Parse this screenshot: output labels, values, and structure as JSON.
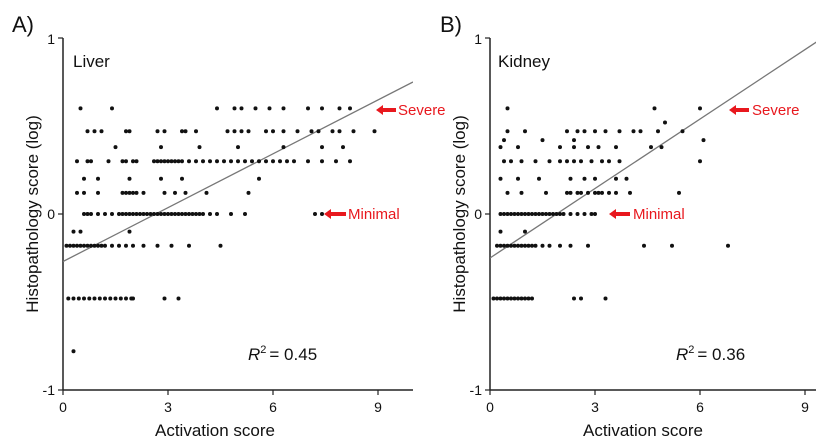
{
  "chart_data": [
    {
      "type": "scatter",
      "panel_label": "A)",
      "title": "Liver",
      "xlabel": "Activation score",
      "ylabel": "Histopathology score (log)",
      "xlim": [
        0,
        10
      ],
      "ylim": [
        -1,
        1
      ],
      "xticks": [
        "0",
        "3",
        "6",
        "9"
      ],
      "yticks": [
        "-1",
        "0",
        "1"
      ],
      "r2_label": "R",
      "r2_sup": "2",
      "r2_value": "= 0.45",
      "regression": {
        "x": [
          0,
          10
        ],
        "y": [
          -0.27,
          0.75
        ]
      },
      "annotations": [
        {
          "text": "Severe",
          "x": 9.6,
          "y": 0.6,
          "color": "#e8181e"
        },
        {
          "text": "Minimal",
          "x": 8.1,
          "y": 0.0,
          "color": "#e8181e"
        }
      ],
      "points": [
        [
          0.3,
          -0.78
        ],
        [
          0.15,
          -0.48
        ],
        [
          0.3,
          -0.48
        ],
        [
          0.45,
          -0.48
        ],
        [
          0.6,
          -0.48
        ],
        [
          0.75,
          -0.48
        ],
        [
          0.9,
          -0.48
        ],
        [
          1.05,
          -0.48
        ],
        [
          1.2,
          -0.48
        ],
        [
          1.35,
          -0.48
        ],
        [
          1.5,
          -0.48
        ],
        [
          1.65,
          -0.48
        ],
        [
          1.8,
          -0.48
        ],
        [
          1.95,
          -0.48
        ],
        [
          2.0,
          -0.48
        ],
        [
          2.9,
          -0.48
        ],
        [
          3.3,
          -0.48
        ],
        [
          0.1,
          -0.18
        ],
        [
          0.2,
          -0.18
        ],
        [
          0.3,
          -0.18
        ],
        [
          0.4,
          -0.18
        ],
        [
          0.5,
          -0.18
        ],
        [
          0.6,
          -0.18
        ],
        [
          0.7,
          -0.18
        ],
        [
          0.8,
          -0.18
        ],
        [
          0.9,
          -0.18
        ],
        [
          1.0,
          -0.18
        ],
        [
          1.1,
          -0.18
        ],
        [
          1.2,
          -0.18
        ],
        [
          1.4,
          -0.18
        ],
        [
          1.6,
          -0.18
        ],
        [
          1.8,
          -0.18
        ],
        [
          2.0,
          -0.18
        ],
        [
          2.3,
          -0.18
        ],
        [
          2.7,
          -0.18
        ],
        [
          3.1,
          -0.18
        ],
        [
          3.6,
          -0.18
        ],
        [
          4.5,
          -0.18
        ],
        [
          0.3,
          -0.1
        ],
        [
          0.5,
          -0.1
        ],
        [
          1.9,
          -0.1
        ],
        [
          0.6,
          0.0
        ],
        [
          0.7,
          0.0
        ],
        [
          0.8,
          0.0
        ],
        [
          1.0,
          0.0
        ],
        [
          1.2,
          0.0
        ],
        [
          1.4,
          0.0
        ],
        [
          1.6,
          0.0
        ],
        [
          1.7,
          0.0
        ],
        [
          1.8,
          0.0
        ],
        [
          1.9,
          0.0
        ],
        [
          2.0,
          0.0
        ],
        [
          2.1,
          0.0
        ],
        [
          2.2,
          0.0
        ],
        [
          2.3,
          0.0
        ],
        [
          2.4,
          0.0
        ],
        [
          2.5,
          0.0
        ],
        [
          2.6,
          0.0
        ],
        [
          2.7,
          0.0
        ],
        [
          2.8,
          0.0
        ],
        [
          2.9,
          0.0
        ],
        [
          3.0,
          0.0
        ],
        [
          3.1,
          0.0
        ],
        [
          3.2,
          0.0
        ],
        [
          3.3,
          0.0
        ],
        [
          3.4,
          0.0
        ],
        [
          3.5,
          0.0
        ],
        [
          3.6,
          0.0
        ],
        [
          3.7,
          0.0
        ],
        [
          3.8,
          0.0
        ],
        [
          3.9,
          0.0
        ],
        [
          4.0,
          0.0
        ],
        [
          4.2,
          0.0
        ],
        [
          4.4,
          0.0
        ],
        [
          4.8,
          0.0
        ],
        [
          5.2,
          0.0
        ],
        [
          7.2,
          0.0
        ],
        [
          7.4,
          0.0
        ],
        [
          0.4,
          0.12
        ],
        [
          0.6,
          0.12
        ],
        [
          1.0,
          0.12
        ],
        [
          1.7,
          0.12
        ],
        [
          1.8,
          0.12
        ],
        [
          1.9,
          0.12
        ],
        [
          2.0,
          0.12
        ],
        [
          2.1,
          0.12
        ],
        [
          2.3,
          0.12
        ],
        [
          2.9,
          0.12
        ],
        [
          3.2,
          0.12
        ],
        [
          3.5,
          0.12
        ],
        [
          4.1,
          0.12
        ],
        [
          5.3,
          0.12
        ],
        [
          0.6,
          0.2
        ],
        [
          1.0,
          0.2
        ],
        [
          1.9,
          0.2
        ],
        [
          2.8,
          0.2
        ],
        [
          3.4,
          0.2
        ],
        [
          5.6,
          0.2
        ],
        [
          0.4,
          0.3
        ],
        [
          0.7,
          0.3
        ],
        [
          0.8,
          0.3
        ],
        [
          1.3,
          0.3
        ],
        [
          1.7,
          0.3
        ],
        [
          1.8,
          0.3
        ],
        [
          2.0,
          0.3
        ],
        [
          2.1,
          0.3
        ],
        [
          2.6,
          0.3
        ],
        [
          2.7,
          0.3
        ],
        [
          2.8,
          0.3
        ],
        [
          2.9,
          0.3
        ],
        [
          3.0,
          0.3
        ],
        [
          3.1,
          0.3
        ],
        [
          3.2,
          0.3
        ],
        [
          3.3,
          0.3
        ],
        [
          3.4,
          0.3
        ],
        [
          3.6,
          0.3
        ],
        [
          3.8,
          0.3
        ],
        [
          4.0,
          0.3
        ],
        [
          4.2,
          0.3
        ],
        [
          4.4,
          0.3
        ],
        [
          4.6,
          0.3
        ],
        [
          4.8,
          0.3
        ],
        [
          5.0,
          0.3
        ],
        [
          5.2,
          0.3
        ],
        [
          5.4,
          0.3
        ],
        [
          5.6,
          0.3
        ],
        [
          5.8,
          0.3
        ],
        [
          6.0,
          0.3
        ],
        [
          6.2,
          0.3
        ],
        [
          6.4,
          0.3
        ],
        [
          6.6,
          0.3
        ],
        [
          7.0,
          0.3
        ],
        [
          7.4,
          0.3
        ],
        [
          7.8,
          0.3
        ],
        [
          8.2,
          0.3
        ],
        [
          1.5,
          0.38
        ],
        [
          2.8,
          0.38
        ],
        [
          3.9,
          0.38
        ],
        [
          5.0,
          0.38
        ],
        [
          6.3,
          0.38
        ],
        [
          7.4,
          0.38
        ],
        [
          8.0,
          0.38
        ],
        [
          0.7,
          0.47
        ],
        [
          0.9,
          0.47
        ],
        [
          1.1,
          0.47
        ],
        [
          1.8,
          0.47
        ],
        [
          1.9,
          0.47
        ],
        [
          2.7,
          0.47
        ],
        [
          2.9,
          0.47
        ],
        [
          3.4,
          0.47
        ],
        [
          3.5,
          0.47
        ],
        [
          3.8,
          0.47
        ],
        [
          4.7,
          0.47
        ],
        [
          4.9,
          0.47
        ],
        [
          5.1,
          0.47
        ],
        [
          5.3,
          0.47
        ],
        [
          5.8,
          0.47
        ],
        [
          6.0,
          0.47
        ],
        [
          6.3,
          0.47
        ],
        [
          6.7,
          0.47
        ],
        [
          7.1,
          0.47
        ],
        [
          7.3,
          0.47
        ],
        [
          7.7,
          0.47
        ],
        [
          7.9,
          0.47
        ],
        [
          8.3,
          0.47
        ],
        [
          8.9,
          0.47
        ],
        [
          0.5,
          0.6
        ],
        [
          1.4,
          0.6
        ],
        [
          4.4,
          0.6
        ],
        [
          4.9,
          0.6
        ],
        [
          5.1,
          0.6
        ],
        [
          5.5,
          0.6
        ],
        [
          5.9,
          0.6
        ],
        [
          6.3,
          0.6
        ],
        [
          7.0,
          0.6
        ],
        [
          7.4,
          0.6
        ],
        [
          7.9,
          0.6
        ],
        [
          8.2,
          0.6
        ]
      ]
    },
    {
      "type": "scatter",
      "panel_label": "B)",
      "title": "Kidney",
      "xlabel": "Activation score",
      "ylabel": "Histopathology score (log)",
      "xlim": [
        0,
        10
      ],
      "ylim": [
        -1,
        1
      ],
      "xticks": [
        "0",
        "3",
        "6",
        "9"
      ],
      "yticks": [
        "-1",
        "0",
        "1"
      ],
      "r2_label": "R",
      "r2_sup": "2",
      "r2_value": "= 0.36",
      "regression": {
        "x": [
          0,
          9.5
        ],
        "y": [
          -0.25,
          1.0
        ]
      },
      "annotations": [
        {
          "text": "Severe",
          "x": 7.4,
          "y": 0.6,
          "color": "#e8181e"
        },
        {
          "text": "Minimal",
          "x": 3.9,
          "y": 0.0,
          "color": "#e8181e"
        }
      ],
      "points": [
        [
          0.1,
          -0.48
        ],
        [
          0.2,
          -0.48
        ],
        [
          0.3,
          -0.48
        ],
        [
          0.4,
          -0.48
        ],
        [
          0.5,
          -0.48
        ],
        [
          0.6,
          -0.48
        ],
        [
          0.7,
          -0.48
        ],
        [
          0.8,
          -0.48
        ],
        [
          0.9,
          -0.48
        ],
        [
          1.0,
          -0.48
        ],
        [
          1.1,
          -0.48
        ],
        [
          1.2,
          -0.48
        ],
        [
          2.4,
          -0.48
        ],
        [
          2.6,
          -0.48
        ],
        [
          3.3,
          -0.48
        ],
        [
          0.2,
          -0.18
        ],
        [
          0.3,
          -0.18
        ],
        [
          0.4,
          -0.18
        ],
        [
          0.5,
          -0.18
        ],
        [
          0.6,
          -0.18
        ],
        [
          0.7,
          -0.18
        ],
        [
          0.8,
          -0.18
        ],
        [
          0.9,
          -0.18
        ],
        [
          1.0,
          -0.18
        ],
        [
          1.1,
          -0.18
        ],
        [
          1.2,
          -0.18
        ],
        [
          1.3,
          -0.18
        ],
        [
          1.5,
          -0.18
        ],
        [
          1.7,
          -0.18
        ],
        [
          2.0,
          -0.18
        ],
        [
          2.3,
          -0.18
        ],
        [
          2.8,
          -0.18
        ],
        [
          4.4,
          -0.18
        ],
        [
          5.2,
          -0.18
        ],
        [
          6.8,
          -0.18
        ],
        [
          0.3,
          -0.1
        ],
        [
          1.0,
          -0.1
        ],
        [
          0.3,
          0.0
        ],
        [
          0.4,
          0.0
        ],
        [
          0.5,
          0.0
        ],
        [
          0.6,
          0.0
        ],
        [
          0.7,
          0.0
        ],
        [
          0.8,
          0.0
        ],
        [
          0.9,
          0.0
        ],
        [
          1.0,
          0.0
        ],
        [
          1.1,
          0.0
        ],
        [
          1.2,
          0.0
        ],
        [
          1.3,
          0.0
        ],
        [
          1.4,
          0.0
        ],
        [
          1.5,
          0.0
        ],
        [
          1.6,
          0.0
        ],
        [
          1.7,
          0.0
        ],
        [
          1.8,
          0.0
        ],
        [
          1.9,
          0.0
        ],
        [
          2.0,
          0.0
        ],
        [
          2.1,
          0.0
        ],
        [
          2.3,
          0.0
        ],
        [
          2.5,
          0.0
        ],
        [
          2.7,
          0.0
        ],
        [
          2.9,
          0.0
        ],
        [
          3.0,
          0.0
        ],
        [
          0.5,
          0.12
        ],
        [
          0.9,
          0.12
        ],
        [
          1.6,
          0.12
        ],
        [
          2.2,
          0.12
        ],
        [
          2.3,
          0.12
        ],
        [
          2.5,
          0.12
        ],
        [
          2.6,
          0.12
        ],
        [
          2.8,
          0.12
        ],
        [
          3.0,
          0.12
        ],
        [
          3.1,
          0.12
        ],
        [
          3.2,
          0.12
        ],
        [
          3.4,
          0.12
        ],
        [
          3.6,
          0.12
        ],
        [
          4.0,
          0.12
        ],
        [
          5.4,
          0.12
        ],
        [
          0.3,
          0.2
        ],
        [
          0.8,
          0.2
        ],
        [
          1.4,
          0.2
        ],
        [
          2.3,
          0.2
        ],
        [
          2.7,
          0.2
        ],
        [
          3.0,
          0.2
        ],
        [
          3.6,
          0.2
        ],
        [
          3.9,
          0.2
        ],
        [
          0.4,
          0.3
        ],
        [
          0.6,
          0.3
        ],
        [
          0.9,
          0.3
        ],
        [
          1.3,
          0.3
        ],
        [
          1.7,
          0.3
        ],
        [
          2.0,
          0.3
        ],
        [
          2.2,
          0.3
        ],
        [
          2.4,
          0.3
        ],
        [
          2.6,
          0.3
        ],
        [
          2.9,
          0.3
        ],
        [
          3.2,
          0.3
        ],
        [
          3.4,
          0.3
        ],
        [
          3.7,
          0.3
        ],
        [
          6.0,
          0.3
        ],
        [
          0.3,
          0.38
        ],
        [
          0.8,
          0.38
        ],
        [
          2.0,
          0.38
        ],
        [
          2.4,
          0.38
        ],
        [
          2.8,
          0.38
        ],
        [
          3.1,
          0.38
        ],
        [
          3.6,
          0.38
        ],
        [
          4.6,
          0.38
        ],
        [
          4.9,
          0.38
        ],
        [
          0.5,
          0.47
        ],
        [
          1.0,
          0.47
        ],
        [
          2.2,
          0.47
        ],
        [
          2.5,
          0.47
        ],
        [
          2.7,
          0.47
        ],
        [
          3.0,
          0.47
        ],
        [
          3.3,
          0.47
        ],
        [
          3.7,
          0.47
        ],
        [
          4.1,
          0.47
        ],
        [
          4.3,
          0.47
        ],
        [
          4.8,
          0.47
        ],
        [
          5.5,
          0.47
        ],
        [
          0.4,
          0.42
        ],
        [
          1.5,
          0.42
        ],
        [
          2.4,
          0.42
        ],
        [
          6.1,
          0.42
        ],
        [
          0.5,
          0.6
        ],
        [
          4.7,
          0.6
        ],
        [
          5.0,
          0.52
        ],
        [
          6.0,
          0.6
        ]
      ]
    }
  ]
}
